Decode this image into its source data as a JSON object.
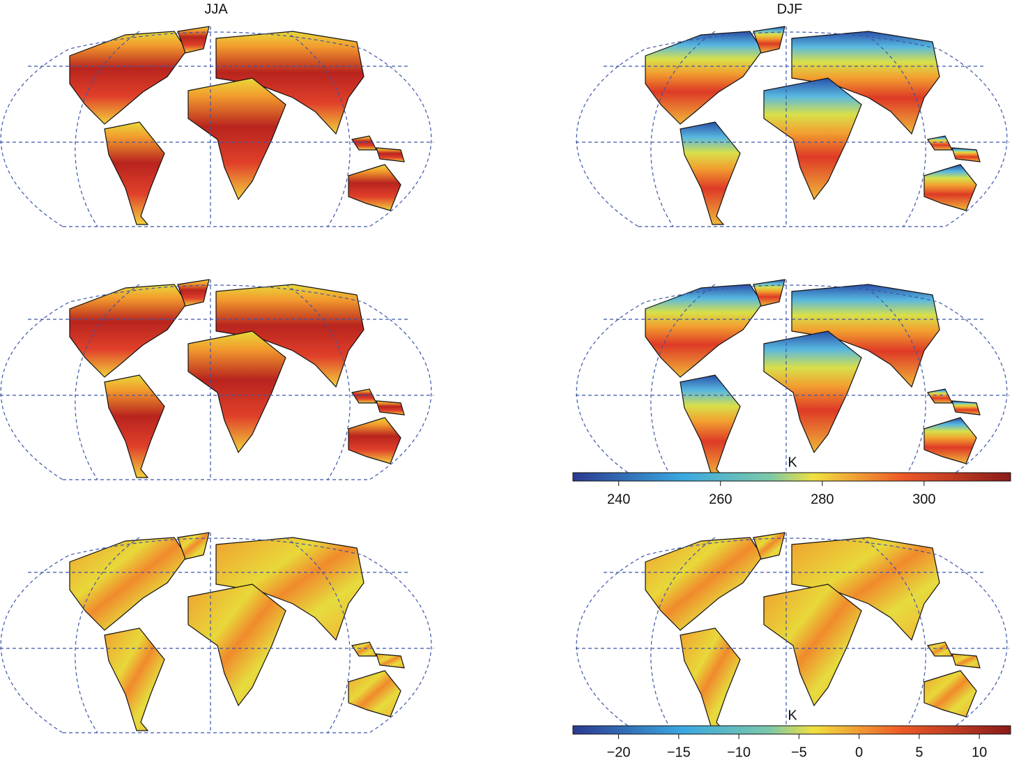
{
  "columns": [
    "JJA",
    "DJF"
  ],
  "colorbars": [
    {
      "label": "K",
      "lim": [
        231,
        317
      ],
      "ticks": [
        240,
        260,
        280,
        300
      ]
    },
    {
      "label": "K",
      "lim": [
        -23.8,
        12.6
      ],
      "ticks": [
        {
          "value": -20,
          "label": "−20"
        },
        {
          "value": -15,
          "label": "−15"
        },
        {
          "value": -10,
          "label": "−10"
        },
        {
          "value": -5,
          "label": "−5"
        },
        0,
        5,
        10
      ]
    }
  ]
}
